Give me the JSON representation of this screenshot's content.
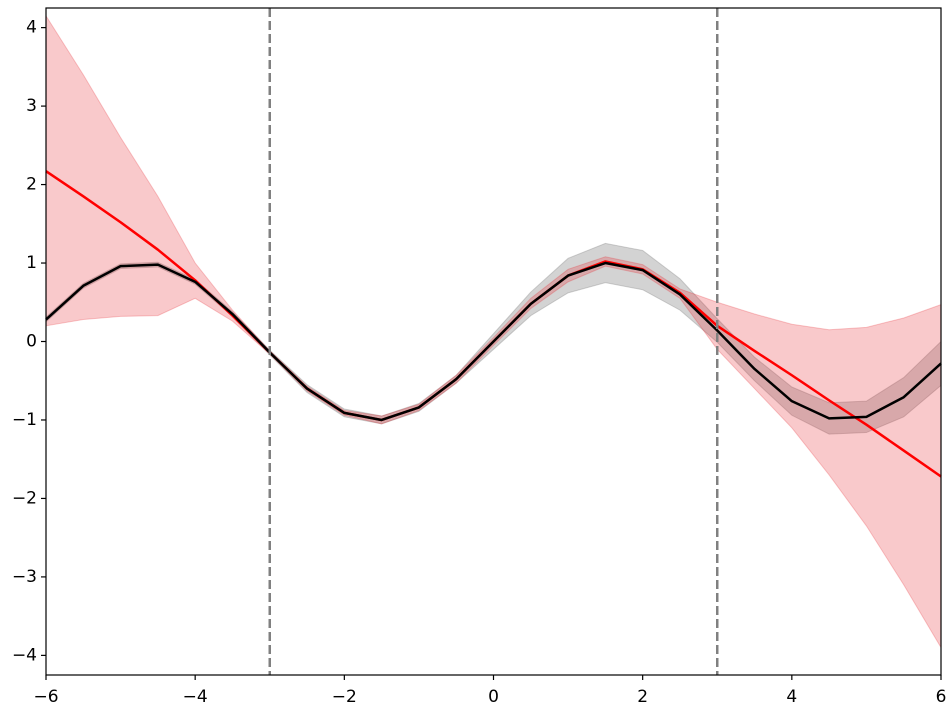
{
  "chart_data": {
    "type": "line",
    "x": [
      -6,
      -5.5,
      -5,
      -4.5,
      -4,
      -3.5,
      -3,
      -2.5,
      -2,
      -1.5,
      -1,
      -0.5,
      0,
      0.5,
      1,
      1.5,
      2,
      2.5,
      3,
      3.5,
      4,
      4.5,
      5,
      5.5,
      6
    ],
    "bands": [
      {
        "color": "#808080",
        "opacity": 0.35,
        "upper": [
          0.31,
          0.74,
          0.99,
          1.01,
          0.79,
          0.38,
          -0.11,
          -0.55,
          -0.86,
          -0.95,
          -0.79,
          -0.43,
          0.1,
          0.63,
          1.06,
          1.25,
          1.16,
          0.8,
          0.29,
          -0.2,
          -0.58,
          -0.78,
          -0.76,
          -0.46,
          0.0
        ],
        "lower": [
          0.25,
          0.68,
          0.93,
          0.95,
          0.73,
          0.32,
          -0.17,
          -0.65,
          -0.96,
          -1.05,
          -0.89,
          -0.53,
          -0.1,
          0.33,
          0.62,
          0.75,
          0.66,
          0.4,
          -0.01,
          -0.5,
          -0.94,
          -1.18,
          -1.16,
          -0.96,
          -0.56
        ]
      },
      {
        "color": "#e8282f",
        "opacity": 0.25,
        "upper": [
          4.15,
          3.4,
          2.6,
          1.85,
          1.0,
          0.4,
          -0.12,
          -0.57,
          -0.88,
          -0.95,
          -0.8,
          -0.43,
          0.05,
          0.55,
          0.92,
          1.08,
          0.98,
          0.67,
          0.5,
          0.35,
          0.22,
          0.15,
          0.18,
          0.3,
          0.47
        ],
        "lower": [
          0.2,
          0.28,
          0.32,
          0.33,
          0.55,
          0.26,
          -0.16,
          -0.63,
          -0.94,
          -1.05,
          -0.88,
          -0.53,
          -0.05,
          0.42,
          0.76,
          0.96,
          0.86,
          0.55,
          -0.1,
          -0.6,
          -1.1,
          -1.7,
          -2.35,
          -3.1,
          -3.9
        ]
      }
    ],
    "series": [
      {
        "color": "#ff0000",
        "values": [
          2.17,
          1.85,
          1.52,
          1.17,
          0.78,
          0.33,
          -0.14,
          -0.6,
          -0.91,
          -1.0,
          -0.84,
          -0.48,
          0.0,
          0.48,
          0.84,
          1.02,
          0.92,
          0.62,
          0.2,
          -0.12,
          -0.43,
          -0.75,
          -1.06,
          -1.39,
          -1.72
        ]
      },
      {
        "color": "#000000",
        "values": [
          0.28,
          0.71,
          0.96,
          0.98,
          0.76,
          0.35,
          -0.14,
          -0.6,
          -0.91,
          -1.0,
          -0.84,
          -0.48,
          0.0,
          0.48,
          0.84,
          1.0,
          0.91,
          0.6,
          0.14,
          -0.35,
          -0.76,
          -0.98,
          -0.96,
          -0.71,
          -0.28
        ]
      }
    ],
    "vlines": [
      -3,
      3
    ],
    "xlim": [
      -6,
      6
    ],
    "ylim": [
      -4.25,
      4.25
    ],
    "xticks": [
      {
        "value": -6,
        "label": "−6"
      },
      {
        "value": -4,
        "label": "−4"
      },
      {
        "value": -2,
        "label": "−2"
      },
      0,
      2,
      4,
      6
    ],
    "yticks": [
      {
        "value": -4,
        "label": "−4"
      },
      {
        "value": -3,
        "label": "−3"
      },
      {
        "value": -2,
        "label": "−2"
      },
      {
        "value": -1,
        "label": "−1"
      },
      0,
      1,
      2,
      3,
      4
    ]
  }
}
